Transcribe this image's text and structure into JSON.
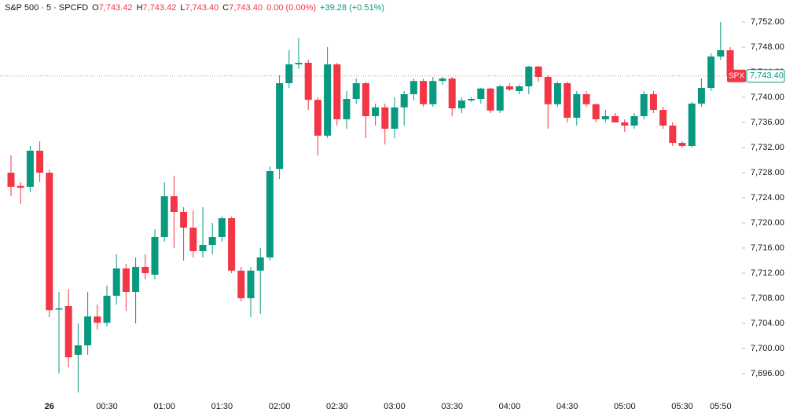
{
  "chart_data": {
    "type": "candlestick",
    "title": "S&P 500 · 5 · SPCFD",
    "readout": [
      {
        "label": "O",
        "value": "7,743.42"
      },
      {
        "label": "H",
        "value": "7,743.42"
      },
      {
        "label": "L",
        "value": "7,743.40"
      },
      {
        "label": "C",
        "value": "7,743.40"
      }
    ],
    "change": "0.00 (0.00%)",
    "daily_change": "+39.28 (+0.51%)",
    "symbol_tag": "SPX",
    "last_price": {
      "value": 7743.4,
      "label": "7,743.40"
    },
    "up_color": "#089981",
    "down_color": "#f23645",
    "grid": false,
    "categories": [
      null,
      null,
      null,
      null,
      "26",
      null,
      null,
      null,
      null,
      null,
      "00:30",
      null,
      null,
      null,
      null,
      null,
      "01:00",
      null,
      null,
      null,
      null,
      null,
      "01:30",
      null,
      null,
      null,
      null,
      null,
      "02:00",
      null,
      null,
      null,
      null,
      null,
      "02:30",
      null,
      null,
      null,
      null,
      null,
      "03:00",
      null,
      null,
      null,
      null,
      null,
      "03:30",
      null,
      null,
      null,
      null,
      null,
      "04:00",
      null,
      null,
      null,
      null,
      null,
      "04:30",
      null,
      null,
      null,
      null,
      null,
      "05:00",
      null,
      null,
      null,
      null,
      null,
      "05:30",
      null,
      null,
      null,
      "05:50",
      null
    ],
    "open": [
      7728,
      7725.9,
      7725.75,
      7731.5,
      7728,
      7706.2,
      7706.75,
      7699,
      7700.5,
      7705.1,
      7704.1,
      7708.4,
      7712.75,
      7709,
      7713,
      7711.75,
      7717.75,
      7724.25,
      7721.75,
      7719.25,
      7715.5,
      7716.5,
      7717.75,
      7720.75,
      7712.4,
      7708,
      7712.4,
      7714.5,
      7728.6,
      7742.25,
      7745.25,
      7745.5,
      7739.6,
      7733.9,
      7745.25,
      7736.5,
      7739.75,
      7742.25,
      7737,
      7738.4,
      7735,
      7738.4,
      7740.5,
      7742.6,
      7738.9,
      7742.6,
      7743,
      7738.25,
      7739.5,
      7739.75,
      7741.4,
      7737.9,
      7741.75,
      7741,
      7741.75,
      7744.9,
      7743.25,
      7738.9,
      7742.25,
      7736.75,
      7740.5,
      7738.9,
      7736.5,
      7737,
      7736,
      7735.5,
      7737,
      7740.5,
      7738,
      7735.5,
      7732.75,
      7732.25,
      7739,
      7741.5,
      7746.5,
      7747.5
    ],
    "high": [
      7730.75,
      7726.5,
      7732.25,
      7733,
      7728.5,
      7709,
      7709.5,
      7704,
      7709,
      7707,
      7710,
      7715,
      7713.5,
      7714.5,
      7715,
      7719,
      7726.5,
      7727.5,
      7722.5,
      7722,
      7722.5,
      7720,
      7721,
      7721,
      7713,
      7713,
      7716,
      7729,
      7743.5,
      7747.5,
      7749.5,
      7746,
      7740,
      7748,
      7745.5,
      7741,
      7743,
      7742.5,
      7739,
      7739,
      7740,
      7741,
      7743,
      7743,
      7743.25,
      7743.25,
      7743.25,
      7740,
      7740,
      7741.5,
      7741.5,
      7742,
      7742.25,
      7742,
      7745,
      7745,
      7743.5,
      7742.5,
      7742.5,
      7741,
      7741,
      7739,
      7738,
      7737.5,
      7736.5,
      7737.5,
      7741,
      7741,
      7738.5,
      7736,
      7733,
      7739.25,
      7743,
      7747,
      7752,
      7748
    ],
    "low": [
      7724.25,
      7723,
      7724.9,
      7726.5,
      7705,
      7696,
      7697,
      7693,
      7699,
      7703,
      7703.5,
      7707,
      7706,
      7704,
      7711,
      7711,
      7717,
      7716,
      7714,
      7714.5,
      7714.5,
      7715,
      7717,
      7712,
      7707.5,
      7705,
      7705.5,
      7714,
      7727,
      7741.5,
      7744.5,
      7738,
      7730.75,
      7733.5,
      7735.5,
      7735,
      7739,
      7733.5,
      7735.5,
      7732.5,
      7733.5,
      7735.5,
      7739.5,
      7738.5,
      7738.5,
      7742,
      7737,
      7737.5,
      7739.25,
      7739,
      7737.5,
      7737.5,
      7741,
      7740.5,
      7740.5,
      7742.5,
      7735,
      7738.5,
      7736,
      7735.5,
      7738.5,
      7736,
      7736,
      7736,
      7734.5,
      7735,
      7736.5,
      7737.5,
      7735,
      7732.25,
      7732,
      7732,
      7738.5,
      7741,
      7746,
      7742.75
    ],
    "close": [
      7725.75,
      7725.6,
      7731.5,
      7728,
      7706.1,
      7706.4,
      7698.6,
      7700.5,
      7705.1,
      7704.1,
      7708.4,
      7712.75,
      7709,
      7713,
      7712,
      7717.75,
      7724.25,
      7721.75,
      7719.25,
      7715.5,
      7716.5,
      7717.75,
      7720.75,
      7712.4,
      7708,
      7712.4,
      7714.5,
      7728.25,
      7742.25,
      7745.25,
      7745.5,
      7739.6,
      7733.9,
      7745.25,
      7736.5,
      7739.75,
      7742.25,
      7737,
      7738.4,
      7735,
      7738.4,
      7740.5,
      7742.6,
      7738.9,
      7742.6,
      7743,
      7738.25,
      7739.5,
      7739.75,
      7741.4,
      7737.9,
      7741.75,
      7741.25,
      7741.75,
      7744.9,
      7743.25,
      7738.9,
      7742.25,
      7736.75,
      7740.5,
      7738.9,
      7736.5,
      7737,
      7736,
      7735.5,
      7737,
      7740.5,
      7738,
      7735.5,
      7732.75,
      7732.25,
      7739,
      7741.5,
      7746.5,
      7747.5,
      7743.4
    ],
    "ylim": [
      7692,
      7755.5
    ],
    "yticks": [
      {
        "value": 7696,
        "label": "7,696.00"
      },
      {
        "value": 7700,
        "label": "7,700.00"
      },
      {
        "value": 7704,
        "label": "7,704.00"
      },
      {
        "value": 7708,
        "label": "7,708.00"
      },
      {
        "value": 7712,
        "label": "7,712.00"
      },
      {
        "value": 7716,
        "label": "7,716.00"
      },
      {
        "value": 7720,
        "label": "7,720.00"
      },
      {
        "value": 7724,
        "label": "7,724.00"
      },
      {
        "value": 7728,
        "label": "7,728.00"
      },
      {
        "value": 7732,
        "label": "7,732.00"
      },
      {
        "value": 7736,
        "label": "7,736.00"
      },
      {
        "value": 7740,
        "label": "7,740.00"
      },
      {
        "value": 7744,
        "label": "7,744.00"
      },
      {
        "value": 7748,
        "label": "7,748.00"
      },
      {
        "value": 7752,
        "label": "7,752.00"
      }
    ]
  }
}
